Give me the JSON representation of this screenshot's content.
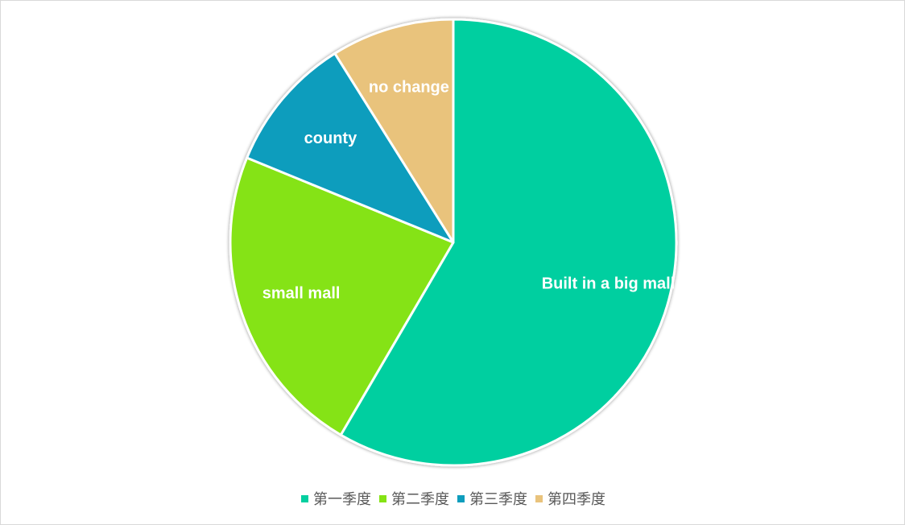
{
  "chart_data": {
    "type": "pie",
    "title": "",
    "slices": [
      {
        "label": "Built in a big mall",
        "value": 59,
        "color": "#03cfa0",
        "legend": "第一季度"
      },
      {
        "label": "small mall",
        "value": 23,
        "color": "#85e314",
        "legend": "第二季度"
      },
      {
        "label": "county",
        "value": 10,
        "color": "#0e9dbd",
        "legend": "第三季度"
      },
      {
        "label": "no change",
        "value": 9,
        "color": "#e9c37c",
        "legend": "第四季度"
      }
    ],
    "legend_position": "bottom"
  }
}
